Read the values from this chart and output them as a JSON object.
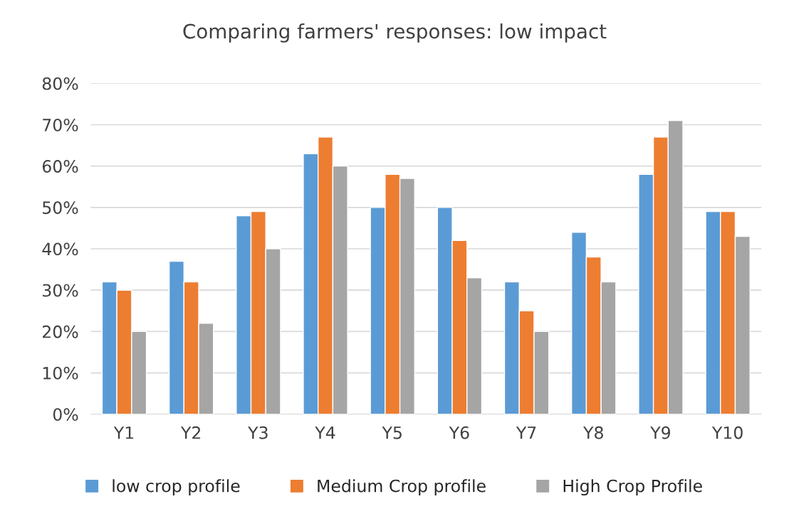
{
  "chart_data": {
    "type": "bar",
    "title": "Comparing farmers' responses: low impact",
    "categories": [
      "Y1",
      "Y2",
      "Y3",
      "Y4",
      "Y5",
      "Y6",
      "Y7",
      "Y8",
      "Y9",
      "Y10"
    ],
    "series": [
      {
        "name": "low crop profile",
        "color": "#5b9bd5",
        "values": [
          32,
          37,
          48,
          63,
          50,
          50,
          32,
          44,
          58,
          49
        ]
      },
      {
        "name": "Medium Crop profile",
        "color": "#ed7d31",
        "values": [
          30,
          32,
          49,
          67,
          58,
          42,
          25,
          38,
          67,
          49
        ]
      },
      {
        "name": "High Crop Profile",
        "color": "#a5a5a5",
        "values": [
          20,
          22,
          40,
          60,
          57,
          33,
          20,
          32,
          71,
          43
        ]
      }
    ],
    "ylim": [
      0,
      80
    ],
    "yticks": [
      {
        "value": 0,
        "label": "0%"
      },
      {
        "value": 10,
        "label": "10%"
      },
      {
        "value": 20,
        "label": "20%"
      },
      {
        "value": 30,
        "label": "30%"
      },
      {
        "value": 40,
        "label": "40%"
      },
      {
        "value": 50,
        "label": "50%"
      },
      {
        "value": 60,
        "label": "60%"
      },
      {
        "value": 70,
        "label": "70%"
      },
      {
        "value": 80,
        "label": "80%"
      }
    ],
    "grid": "y",
    "legend": "bottom"
  }
}
